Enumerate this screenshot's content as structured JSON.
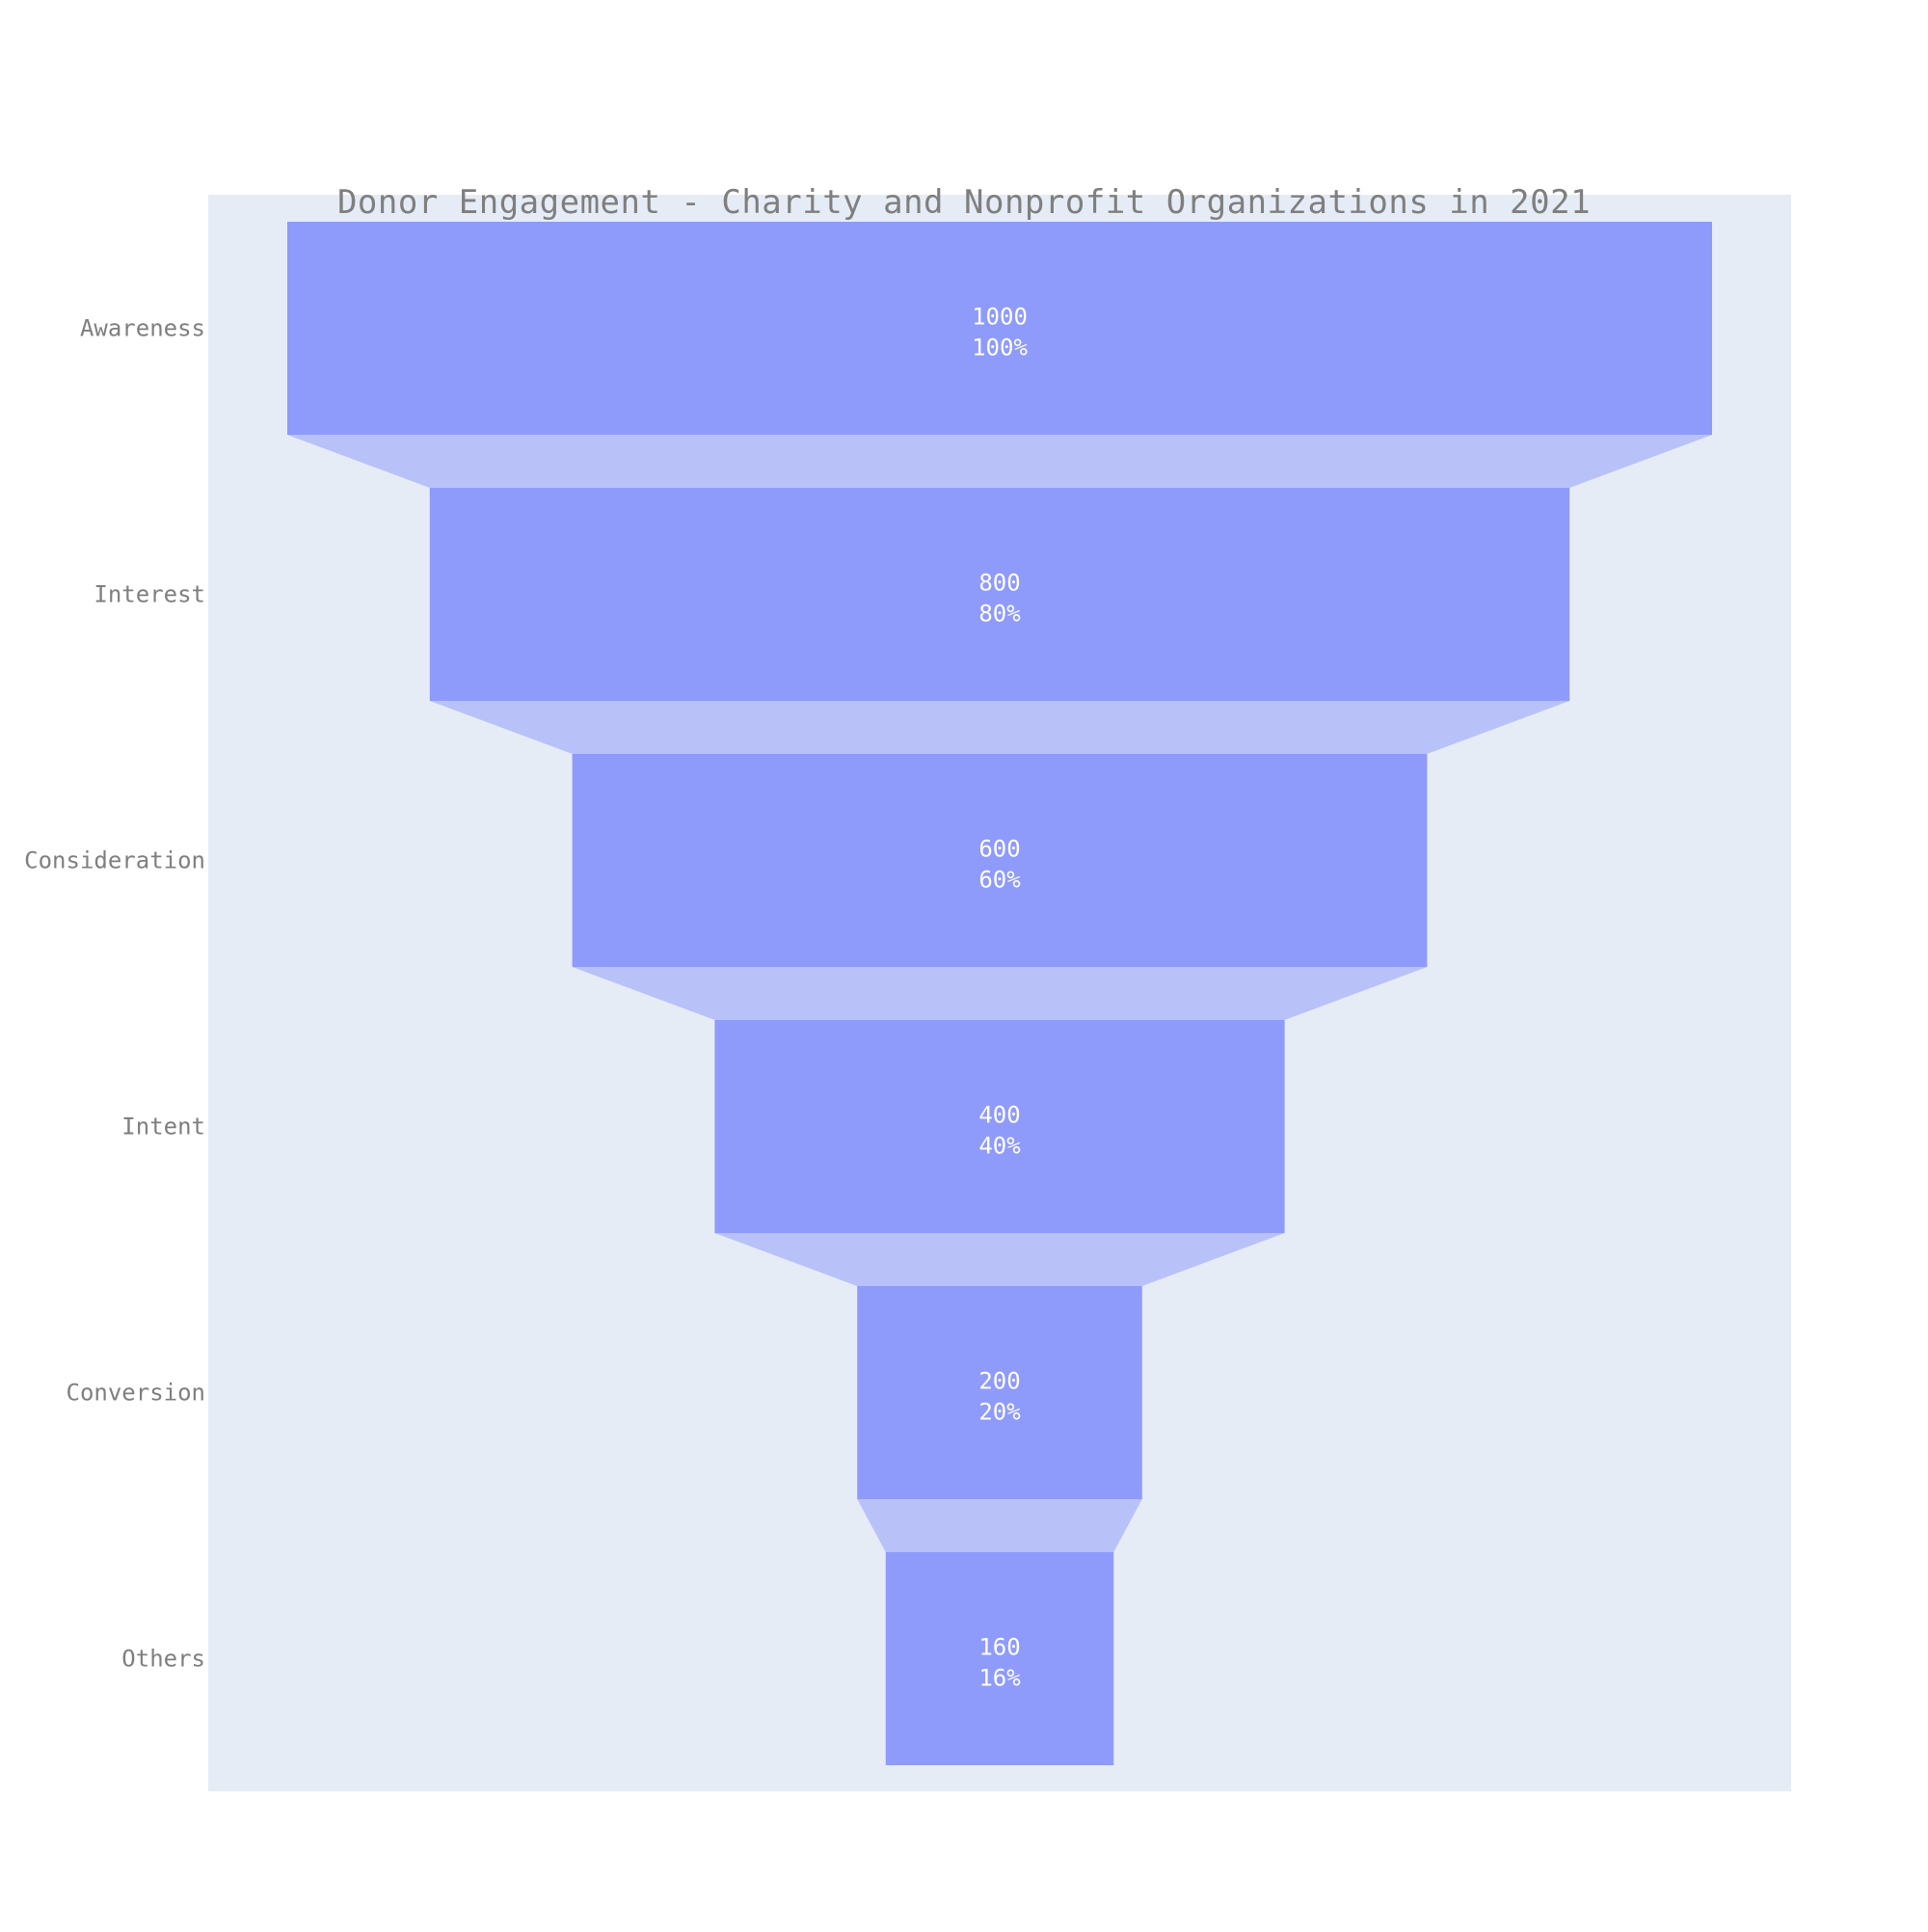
{
  "chart_data": {
    "type": "funnel",
    "title": "Donor Engagement - Charity and Nonprofit Organizations in 2021",
    "categories": [
      "Awareness",
      "Interest",
      "Consideration",
      "Intent",
      "Conversion",
      "Others"
    ],
    "values": [
      1000,
      800,
      600,
      400,
      200,
      160
    ],
    "percent_labels": [
      "100%",
      "80%",
      "60%",
      "40%",
      "20%",
      "16%"
    ],
    "colors": {
      "plot_background": "#e5ecf6",
      "bar": "#8f9bfa",
      "connector": "#b8c2f8",
      "bar_label_text": "#ffffff",
      "axis_text": "#7f7f7f"
    },
    "legend": "none",
    "grid": false
  }
}
